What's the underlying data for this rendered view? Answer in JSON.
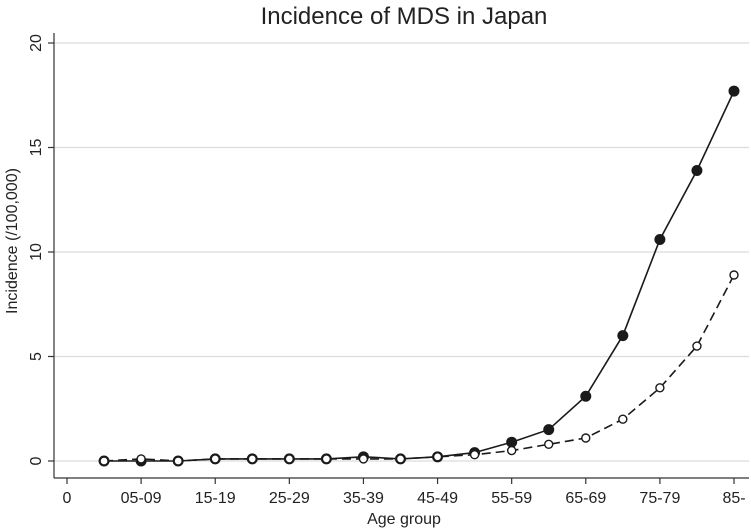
{
  "chart_data": {
    "type": "line",
    "title": "Incidence of MDS in Japan",
    "xlabel": "Age group",
    "ylabel": "Incidence (/100,000)",
    "ylim": [
      0,
      20
    ],
    "xlim": [
      0,
      18
    ],
    "grid": true,
    "legend": "none",
    "yticks": [
      0,
      5,
      10,
      15,
      20
    ],
    "xticks": [
      {
        "pos": 0,
        "label": "0"
      },
      {
        "pos": 2,
        "label": "05-09"
      },
      {
        "pos": 4,
        "label": "15-19"
      },
      {
        "pos": 6,
        "label": "25-29"
      },
      {
        "pos": 8,
        "label": "35-39"
      },
      {
        "pos": 10,
        "label": "45-49"
      },
      {
        "pos": 12,
        "label": "55-59"
      },
      {
        "pos": 14,
        "label": "65-69"
      },
      {
        "pos": 16,
        "label": "75-79"
      },
      {
        "pos": 18,
        "label": "85-"
      }
    ],
    "x": [
      1,
      2,
      3,
      4,
      5,
      6,
      7,
      8,
      9,
      10,
      11,
      12,
      13,
      14,
      15,
      16,
      17,
      18
    ],
    "series": [
      {
        "style": "solid",
        "marker": "filled-circle",
        "color": "#1a1a1a",
        "values": [
          0.0,
          0.0,
          0.0,
          0.1,
          0.1,
          0.1,
          0.1,
          0.2,
          0.1,
          0.2,
          0.4,
          0.9,
          1.5,
          3.1,
          6.0,
          10.6,
          13.9,
          17.7
        ]
      },
      {
        "style": "dashed",
        "marker": "hollow-circle",
        "color": "#1a1a1a",
        "values": [
          0.0,
          0.1,
          0.0,
          0.1,
          0.1,
          0.1,
          0.1,
          0.1,
          0.1,
          0.2,
          0.3,
          0.5,
          0.8,
          1.1,
          2.0,
          3.5,
          5.5,
          8.9
        ]
      }
    ]
  },
  "colors": {
    "grid": "#dcdcdc",
    "axis": "#333333",
    "background": "#ffffff"
  }
}
